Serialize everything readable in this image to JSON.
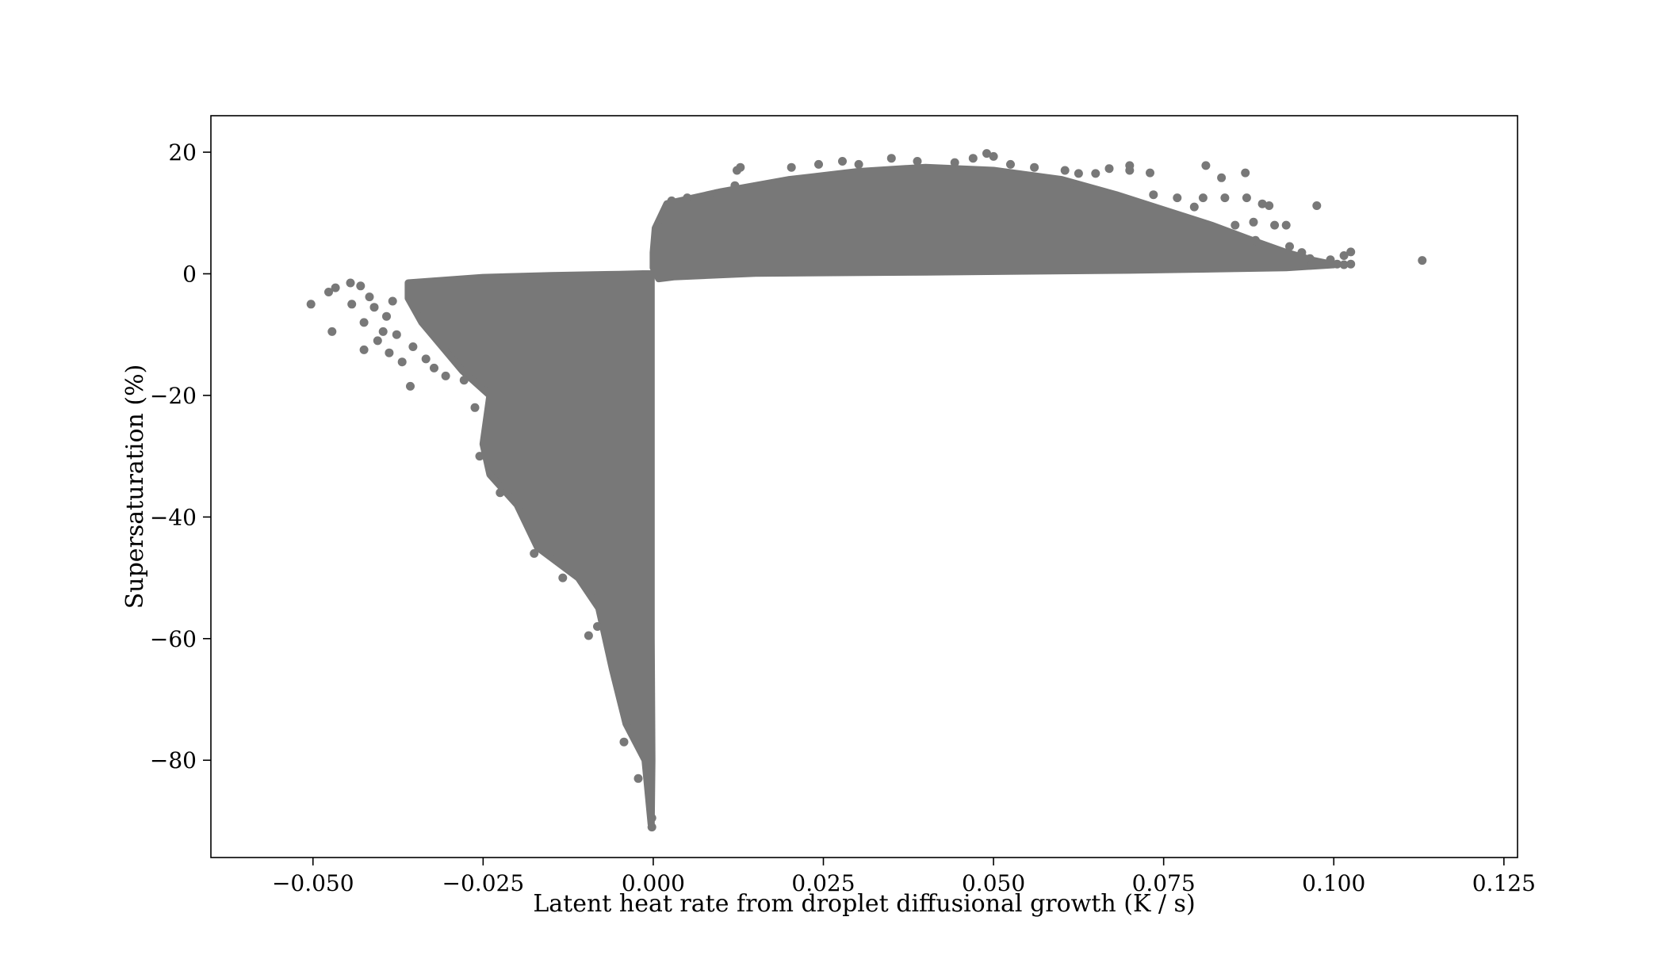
{
  "chart_data": {
    "type": "scatter",
    "title": "",
    "xlabel": "Latent heat rate from droplet diffusional growth (K / s)",
    "ylabel": "Supersaturation (%)",
    "xlim": [
      -0.065,
      0.127
    ],
    "ylim": [
      -96,
      26
    ],
    "x_ticks": [
      -0.05,
      -0.025,
      0.0,
      0.025,
      0.05,
      0.075,
      0.1,
      0.125
    ],
    "x_tick_labels": [
      "−0.050",
      "−0.025",
      "0.000",
      "0.025",
      "0.050",
      "0.075",
      "0.100",
      "0.125"
    ],
    "y_ticks": [
      20,
      0,
      -20,
      -40,
      -60,
      -80
    ],
    "y_tick_labels": [
      "20",
      "0",
      "−20",
      "−40",
      "−60",
      "−80"
    ],
    "grid": false,
    "legend": "none",
    "marker_color": "#787878",
    "series": [
      {
        "regions": [
          {
            "description_role": "dense_mass_negative",
            "outline": [
              [
                -0.036,
                -1.5
              ],
              [
                -0.025,
                -0.6
              ],
              [
                -0.015,
                -0.3
              ],
              [
                -0.005,
                -0.1
              ],
              [
                -0.0015,
                0.0
              ],
              [
                -0.0003,
                0.0
              ],
              [
                -0.0003,
                -60
              ],
              [
                -0.0002,
                -80
              ],
              [
                -0.0003,
                -90.5
              ],
              [
                -0.0012,
                -80
              ],
              [
                -0.004,
                -74
              ],
              [
                -0.006,
                -65
              ],
              [
                -0.008,
                -55
              ],
              [
                -0.011,
                -50
              ],
              [
                -0.017,
                -45
              ],
              [
                -0.02,
                -38
              ],
              [
                -0.024,
                -33
              ],
              [
                -0.025,
                -28
              ],
              [
                -0.024,
                -20
              ],
              [
                -0.028,
                -16
              ],
              [
                -0.031,
                -12
              ],
              [
                -0.034,
                -8
              ],
              [
                -0.036,
                -4
              ]
            ]
          },
          {
            "description_role": "dense_mass_positive",
            "outline": [
              [
                0.0,
                1.0
              ],
              [
                0.0,
                3.5
              ],
              [
                0.0003,
                7.5
              ],
              [
                0.002,
                11.5
              ],
              [
                0.01,
                13.5
              ],
              [
                0.02,
                15.5
              ],
              [
                0.03,
                16.8
              ],
              [
                0.04,
                17.5
              ],
              [
                0.05,
                17.0
              ],
              [
                0.06,
                15.5
              ],
              [
                0.068,
                13.0
              ],
              [
                0.075,
                10.5
              ],
              [
                0.082,
                8.0
              ],
              [
                0.088,
                5.5
              ],
              [
                0.093,
                3.5
              ],
              [
                0.097,
                2.2
              ],
              [
                0.1,
                1.5
              ],
              [
                0.093,
                1.0
              ],
              [
                0.07,
                0.6
              ],
              [
                0.04,
                0.3
              ],
              [
                0.015,
                0.1
              ],
              [
                0.003,
                -0.5
              ],
              [
                0.0008,
                -0.8
              ]
            ]
          }
        ],
        "points": [
          [
            -0.0503,
            -5.0
          ],
          [
            -0.0467,
            -2.3
          ],
          [
            -0.0477,
            -3.0
          ],
          [
            -0.0472,
            -9.5
          ],
          [
            -0.0445,
            -1.5
          ],
          [
            -0.0443,
            -5.0
          ],
          [
            -0.043,
            -2.0
          ],
          [
            -0.0425,
            -8.0
          ],
          [
            -0.0425,
            -12.5
          ],
          [
            -0.0417,
            -3.8
          ],
          [
            -0.041,
            -5.5
          ],
          [
            -0.0405,
            -11.0
          ],
          [
            -0.0397,
            -9.5
          ],
          [
            -0.0392,
            -7.0
          ],
          [
            -0.0388,
            -13.0
          ],
          [
            -0.0383,
            -4.5
          ],
          [
            -0.0377,
            -10.0
          ],
          [
            -0.0369,
            -14.5
          ],
          [
            -0.0357,
            -18.5
          ],
          [
            -0.0353,
            -12.0
          ],
          [
            -0.0334,
            -14.0
          ],
          [
            -0.0322,
            -15.5
          ],
          [
            -0.0305,
            -16.8
          ],
          [
            -0.0278,
            -17.5
          ],
          [
            -0.0262,
            -22.0
          ],
          [
            -0.0255,
            -30.0
          ],
          [
            -0.0225,
            -36.0
          ],
          [
            -0.0175,
            -46.0
          ],
          [
            -0.0133,
            -50.0
          ],
          [
            -0.0095,
            -59.5
          ],
          [
            -0.0082,
            -58.0
          ],
          [
            -0.0043,
            -77.0
          ],
          [
            -0.0022,
            -83.0
          ],
          [
            -0.0002,
            -91.0
          ],
          [
            -0.0002,
            -89.5
          ],
          [
            0.0027,
            12.0
          ],
          [
            0.005,
            12.5
          ],
          [
            0.0093,
            13.2
          ],
          [
            0.012,
            14.5
          ],
          [
            0.0123,
            17.0
          ],
          [
            0.0128,
            17.5
          ],
          [
            0.0203,
            17.5
          ],
          [
            0.0243,
            18.0
          ],
          [
            0.0278,
            18.5
          ],
          [
            0.0302,
            18.0
          ],
          [
            0.035,
            19.0
          ],
          [
            0.0388,
            18.5
          ],
          [
            0.0443,
            18.3
          ],
          [
            0.047,
            19.0
          ],
          [
            0.049,
            19.8
          ],
          [
            0.05,
            19.3
          ],
          [
            0.0525,
            18.0
          ],
          [
            0.056,
            17.5
          ],
          [
            0.0605,
            17.0
          ],
          [
            0.0625,
            16.5
          ],
          [
            0.065,
            16.5
          ],
          [
            0.067,
            17.3
          ],
          [
            0.07,
            17.8
          ],
          [
            0.07,
            17.0
          ],
          [
            0.073,
            16.6
          ],
          [
            0.0735,
            13.0
          ],
          [
            0.077,
            12.5
          ],
          [
            0.0795,
            11.0
          ],
          [
            0.0812,
            17.8
          ],
          [
            0.0808,
            12.5
          ],
          [
            0.0835,
            15.8
          ],
          [
            0.084,
            12.5
          ],
          [
            0.0855,
            8.0
          ],
          [
            0.087,
            16.6
          ],
          [
            0.0872,
            12.5
          ],
          [
            0.0882,
            8.5
          ],
          [
            0.0885,
            5.5
          ],
          [
            0.0895,
            11.5
          ],
          [
            0.0905,
            11.2
          ],
          [
            0.0913,
            8.0
          ],
          [
            0.093,
            8.0
          ],
          [
            0.0935,
            4.5
          ],
          [
            0.0953,
            3.5
          ],
          [
            0.0965,
            2.5
          ],
          [
            0.0968,
            1.5
          ],
          [
            0.0975,
            11.2
          ],
          [
            0.0995,
            2.3
          ],
          [
            0.1005,
            1.6
          ],
          [
            0.1015,
            1.5
          ],
          [
            0.1015,
            3.0
          ],
          [
            0.1025,
            3.6
          ],
          [
            0.1025,
            1.6
          ],
          [
            0.113,
            2.2
          ]
        ]
      }
    ]
  }
}
